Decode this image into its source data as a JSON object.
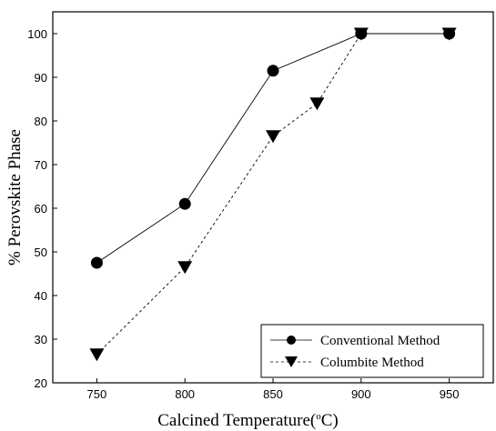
{
  "chart_data": {
    "type": "line",
    "xlabel_parts": {
      "pre": "Calcined Temperature(",
      "sup": "o",
      "post": "C)"
    },
    "ylabel": "% Perovskite Phase",
    "xlim": [
      725,
      975
    ],
    "ylim": [
      20,
      105
    ],
    "xticks": [
      750,
      800,
      850,
      900,
      950
    ],
    "yticks": [
      20,
      30,
      40,
      50,
      60,
      70,
      80,
      90,
      100
    ],
    "legend_position": "bottom-right",
    "series": [
      {
        "name": "Conventional Method",
        "marker": "circle",
        "line_style": "solid",
        "color": "#000000",
        "x": [
          750,
          800,
          850,
          900,
          950
        ],
        "y": [
          47.5,
          61,
          91.5,
          100,
          100
        ]
      },
      {
        "name": "Columbite Method",
        "marker": "triangle-down",
        "line_style": "dashed",
        "color": "#000000",
        "x": [
          750,
          800,
          850,
          875,
          900,
          950
        ],
        "y": [
          26.5,
          46.5,
          76.5,
          84,
          100,
          100
        ]
      }
    ]
  }
}
